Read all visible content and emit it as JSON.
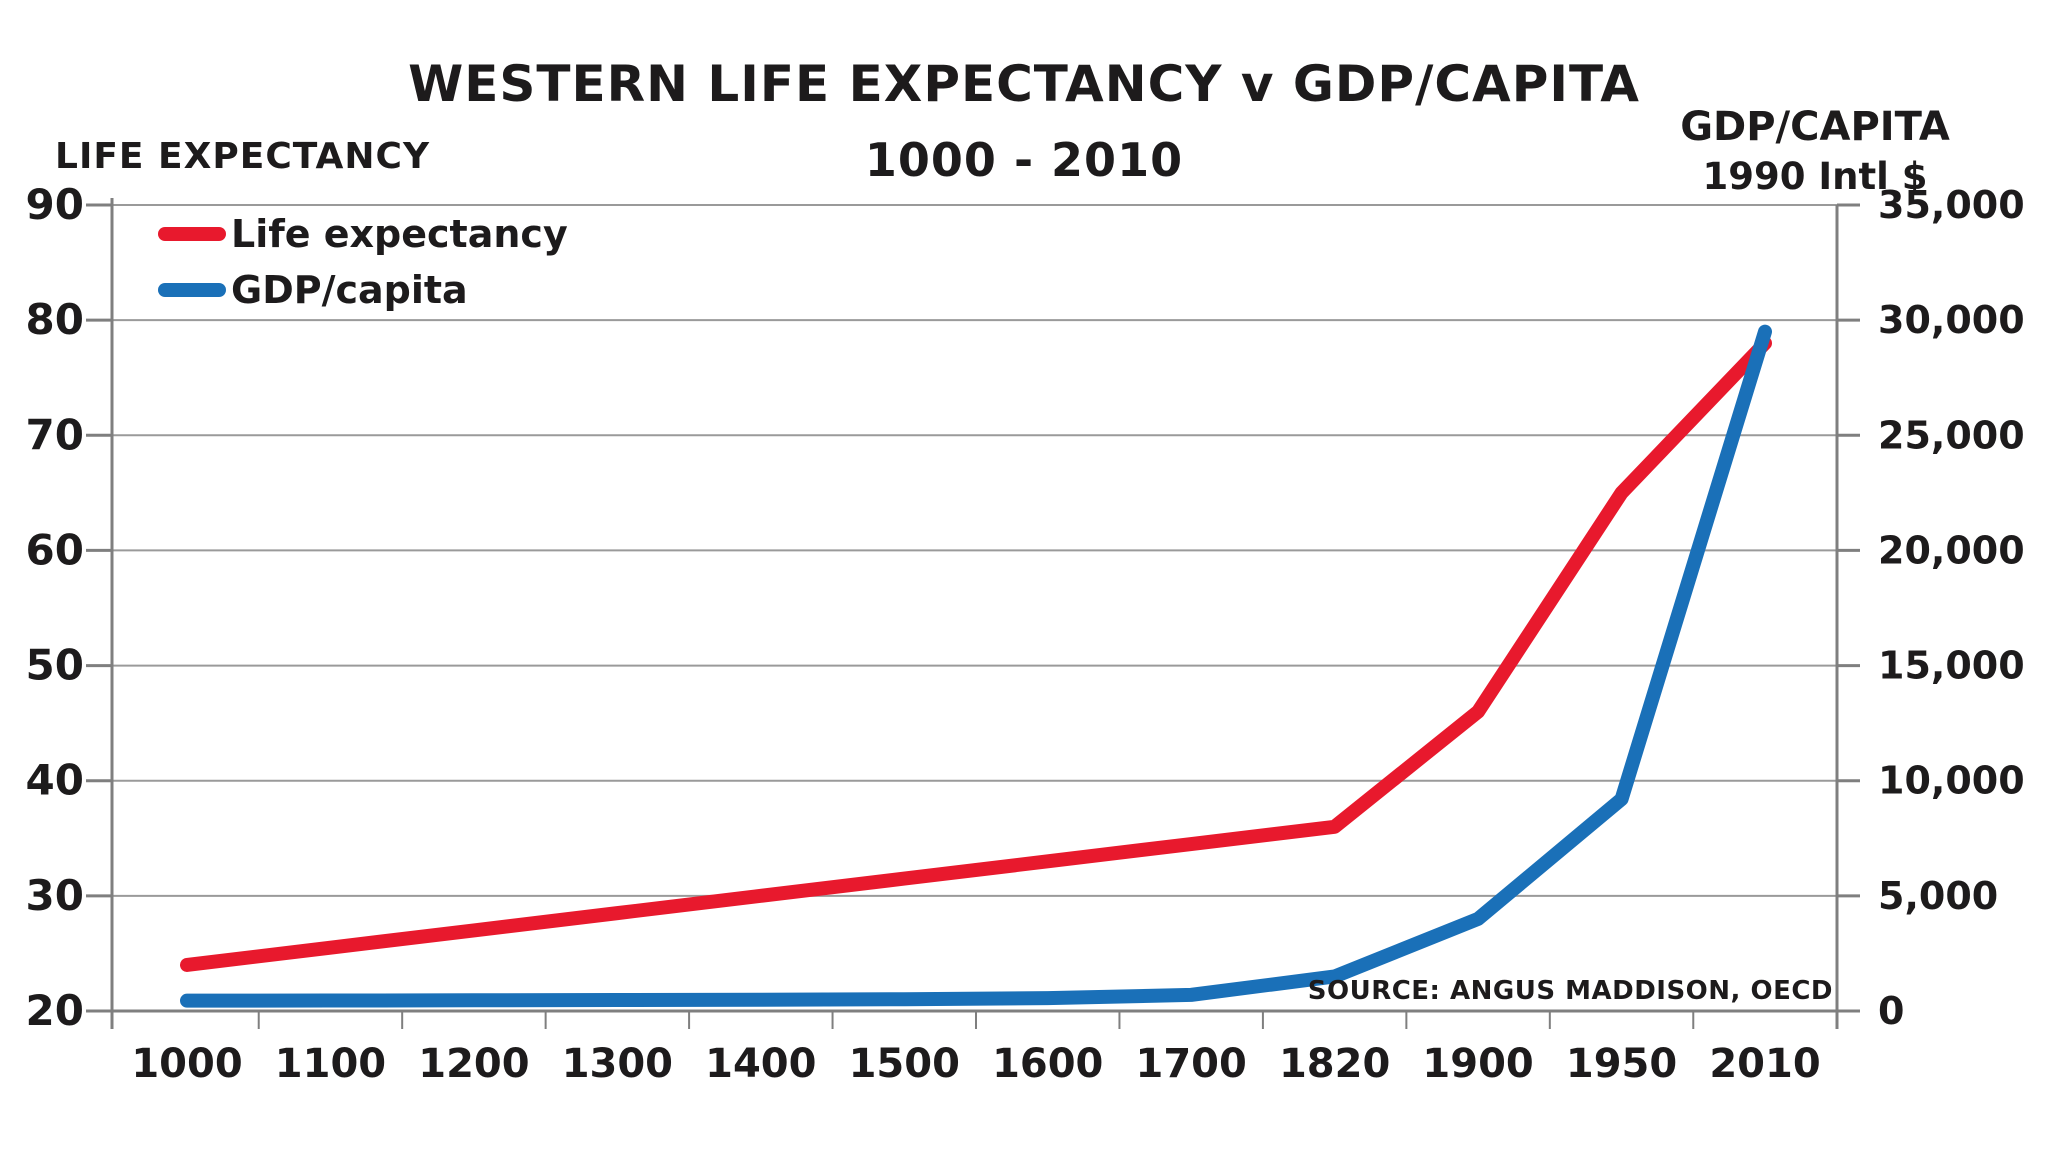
{
  "page": {
    "background": "#ffffff"
  },
  "colors": {
    "grid": "#9a9a9a",
    "axis": "#7f7f7f",
    "text": "#1d1b1c"
  },
  "chart_data": {
    "type": "line",
    "title": "WESTERN LIFE EXPECTANCY v GDP/CAPITA",
    "subtitle": "1000 - 2010",
    "source": "SOURCE: ANGUS MADDISON, OECD",
    "categories": [
      "1000",
      "1100",
      "1200",
      "1300",
      "1400",
      "1500",
      "1600",
      "1700",
      "1820",
      "1900",
      "1950",
      "2010"
    ],
    "left_axis": {
      "title": "LIFE EXPECTANCY",
      "min": 20,
      "max": 90,
      "ticks": [
        90,
        80,
        70,
        60,
        50,
        40,
        30,
        20
      ],
      "tick_labels": [
        "90",
        "80",
        "70",
        "60",
        "50",
        "40",
        "30",
        "20"
      ]
    },
    "right_axis": {
      "title": "GDP/CAPITA",
      "subtitle": "1990 Intl $",
      "min": 0,
      "max": 35000,
      "ticks": [
        35000,
        30000,
        25000,
        20000,
        15000,
        10000,
        5000,
        0
      ],
      "tick_labels": [
        "35,000",
        "30,000",
        "25,000",
        "20,000",
        "15,000",
        "10,000",
        "5,000",
        "0"
      ]
    },
    "series": [
      {
        "name": "Life expectancy",
        "axis": "left",
        "color": "#e8192d",
        "values": [
          24,
          25.5,
          27,
          28.5,
          30,
          31.5,
          33,
          34.5,
          36,
          46,
          65,
          78
        ]
      },
      {
        "name": "GDP/capita",
        "axis": "right",
        "color": "#1a70b8",
        "values": [
          450,
          455,
          465,
          475,
          490,
          510,
          560,
          700,
          1500,
          4000,
          9200,
          29500
        ]
      }
    ],
    "grid": true,
    "legend_position": "top-left"
  }
}
